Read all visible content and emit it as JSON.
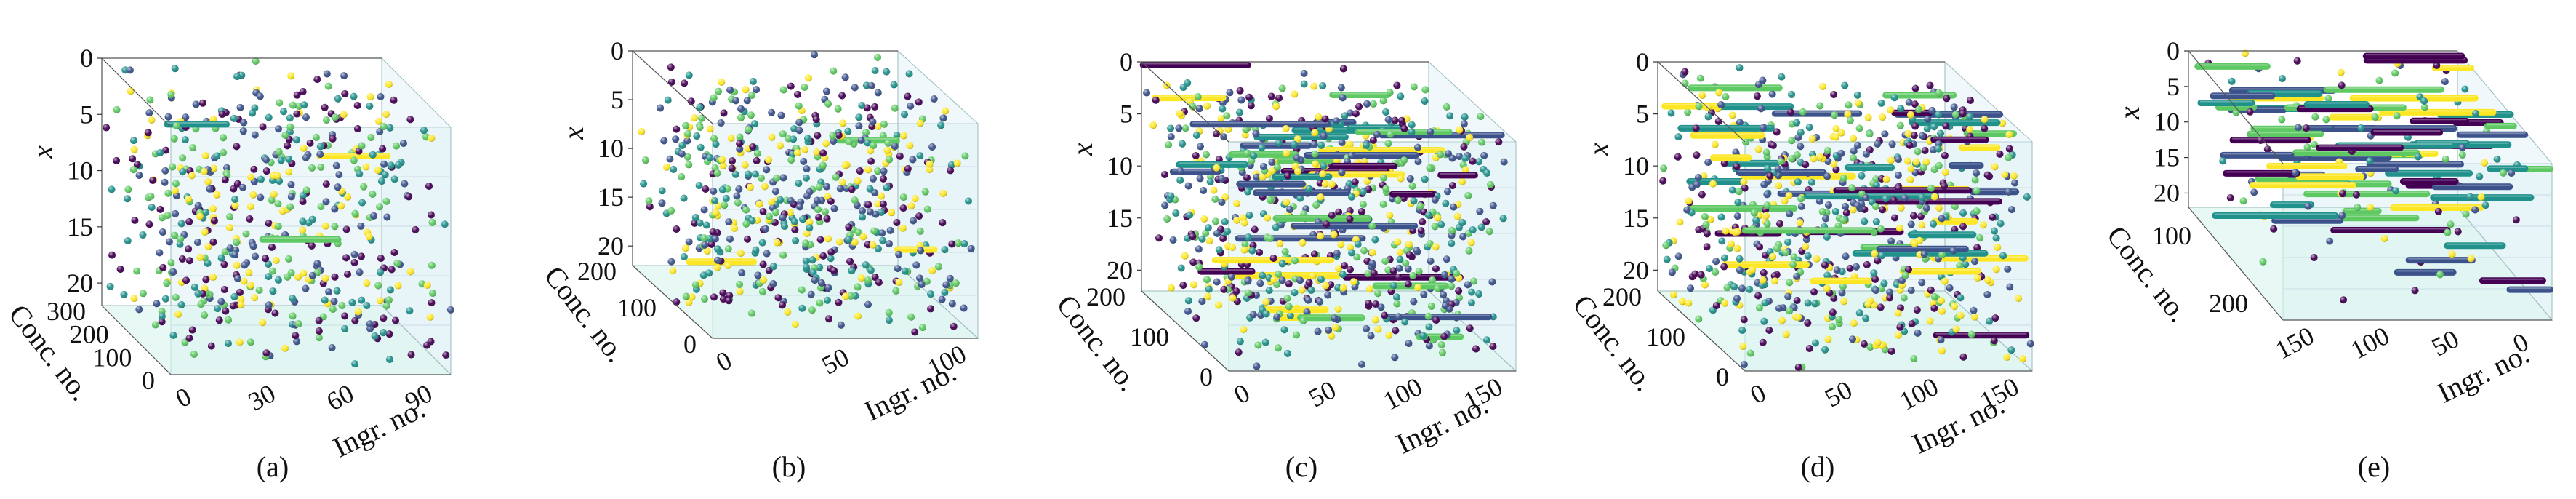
{
  "figure": {
    "panels": [
      "(a)",
      "(b)",
      "(c)",
      "(d)",
      "(e)"
    ]
  },
  "colors": {
    "palette": [
      "#440154",
      "#3b528b",
      "#21918c",
      "#5ec962",
      "#fde725"
    ],
    "pane_fill": "#dff0f6",
    "floor_fill": "#d8f5ee",
    "edge": "#555555"
  },
  "chart_data": [
    {
      "type": "scatter",
      "subtype": "3d-scatter",
      "label": "(a)",
      "axis_labels": {
        "x": "x",
        "y": "Conc. no.",
        "z": "Ingr. no."
      },
      "x_ticks": [
        "0",
        "5",
        "10",
        "15",
        "20"
      ],
      "y_ticks": [
        "300",
        "200",
        "100",
        "0"
      ],
      "z_ticks": [
        "0",
        "30",
        "60",
        "90"
      ],
      "xlim": [
        0,
        22
      ],
      "ylim": [
        0,
        300
      ],
      "zlim": [
        0,
        100
      ],
      "point_count": 520,
      "bar_count": 3
    },
    {
      "type": "scatter",
      "subtype": "3d-scatter",
      "label": "(b)",
      "axis_labels": {
        "x": "x",
        "y": "Conc. no.",
        "z": "Ingr. no."
      },
      "x_ticks": [
        "0",
        "5",
        "10",
        "15",
        "20"
      ],
      "y_ticks": [
        "200",
        "100",
        "0"
      ],
      "z_ticks": [
        "0",
        "50",
        "100"
      ],
      "xlim": [
        0,
        22
      ],
      "ylim": [
        0,
        230
      ],
      "zlim": [
        0,
        110
      ],
      "point_count": 560,
      "bar_count": 3
    },
    {
      "type": "scatter",
      "subtype": "3d-scatter",
      "label": "(c)",
      "axis_labels": {
        "x": "x",
        "y": "Conc. no.",
        "z": "Ingr. no."
      },
      "x_ticks": [
        "0",
        "5",
        "10",
        "15",
        "20"
      ],
      "y_ticks": [
        "200",
        "100",
        "0"
      ],
      "z_ticks": [
        "0",
        "50",
        "100",
        "150"
      ],
      "xlim": [
        0,
        22
      ],
      "ylim": [
        0,
        230
      ],
      "zlim": [
        0,
        160
      ],
      "point_count": 700,
      "bar_count": 40
    },
    {
      "type": "scatter",
      "subtype": "3d-scatter",
      "label": "(d)",
      "axis_labels": {
        "x": "x",
        "y": "Conc. no.",
        "z": "Ingr. no."
      },
      "x_ticks": [
        "0",
        "5",
        "10",
        "15",
        "20"
      ],
      "y_ticks": [
        "200",
        "100",
        "0"
      ],
      "z_ticks": [
        "0",
        "50",
        "100",
        "150"
      ],
      "xlim": [
        0,
        22
      ],
      "ylim": [
        0,
        230
      ],
      "zlim": [
        0,
        160
      ],
      "point_count": 700,
      "bar_count": 40
    },
    {
      "type": "scatter",
      "subtype": "3d-scatter",
      "label": "(e)",
      "axis_labels": {
        "x": "x",
        "y": "Conc. no.",
        "z": "Ingr. no."
      },
      "x_ticks": [
        "0",
        "5",
        "10",
        "15",
        "20"
      ],
      "y_ticks": [
        "100",
        "200"
      ],
      "z_ticks": [
        "150",
        "100",
        "50",
        "0"
      ],
      "xlim": [
        0,
        22
      ],
      "ylim": [
        0,
        230
      ],
      "zlim": [
        0,
        170
      ],
      "point_count": 110,
      "bar_count": 70
    }
  ]
}
